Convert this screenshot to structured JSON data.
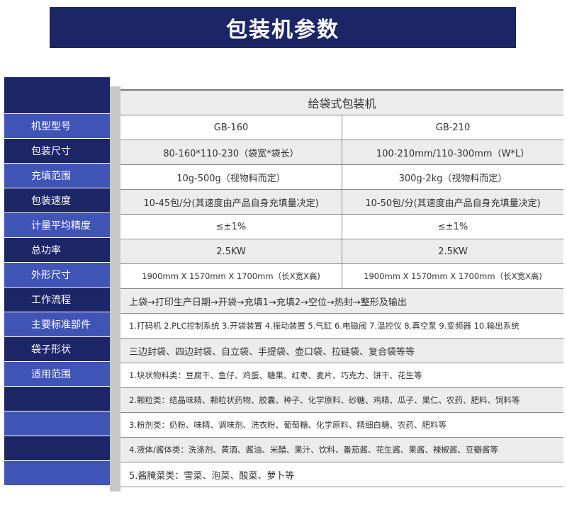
{
  "title": "包装机参数",
  "header": "给袋式包装机",
  "rows": [
    {
      "label": "机型型号",
      "a": "GB-160",
      "b": "GB-210"
    },
    {
      "label": "包装尺寸",
      "a": "80-160*110-230（袋宽*袋长）",
      "b": "100-210mm/110-300mm（W*L）"
    },
    {
      "label": "充填范围",
      "a": "10g-500g（视物料而定）",
      "b": "300g-2kg（视物料而定）"
    },
    {
      "label": "包装速度",
      "a": "10-45包/分(其速度由产品自身充填量决定)",
      "b": "10-50包/分(其速度由产品自身充填量决定)"
    },
    {
      "label": "计量平均精度",
      "a": "≤±1%",
      "b": "≤±1%"
    },
    {
      "label": "总功率",
      "a": "2.5KW",
      "b": "2.5KW"
    },
    {
      "label": "外形尺寸",
      "a": "1900mm X 1570mm X 1700mm（长X宽X高)",
      "b": "1900mm X 1570mm X 1700mm（长X宽X高)"
    },
    {
      "label": "工作流程",
      "full": "上袋→打印生产日期→开袋→充填1→充填2→空位→热封→整形及输出"
    },
    {
      "label": "主要标准部件",
      "full": "1.打码机 2.PLC控制系统 3.开袋装置 4.振动装置 5.气缸 6.电磁阀 7.温控仪 8.真空泵 9.变频器 10.输出系统"
    },
    {
      "label": "袋子形状",
      "full": "三边封袋、四边封袋、自立袋、手提袋、壶口袋、拉链袋、复合袋等等"
    },
    {
      "label": "适用范围",
      "full": "1.块状物料类：豆腐干、鱼仔、鸡蛋、糖果、红枣、麦片、巧克力、饼干、花生等"
    },
    {
      "label": "",
      "full": "2.颗粒类：结晶味精、颗粒状药物、胶囊、种子、化学原料、砂糖、鸡精、瓜子、果仁、农药、肥料、饲料等"
    },
    {
      "label": "",
      "full": "3.粉剂类：奶粉、味精、调味剂、洗衣粉、葡萄糖、化学原料、精细白糖、农药、肥料等"
    },
    {
      "label": "",
      "full": "4.液体/酱体类：洗涤剂、黄酒、酱油、米醋、果汁、饮料、番茄酱、花生酱、果酱、辣椒酱、豆瓣酱等"
    },
    {
      "label": "",
      "full": "5.酱腌菜类：雪菜、泡菜、酸菜、萝卜等"
    }
  ]
}
